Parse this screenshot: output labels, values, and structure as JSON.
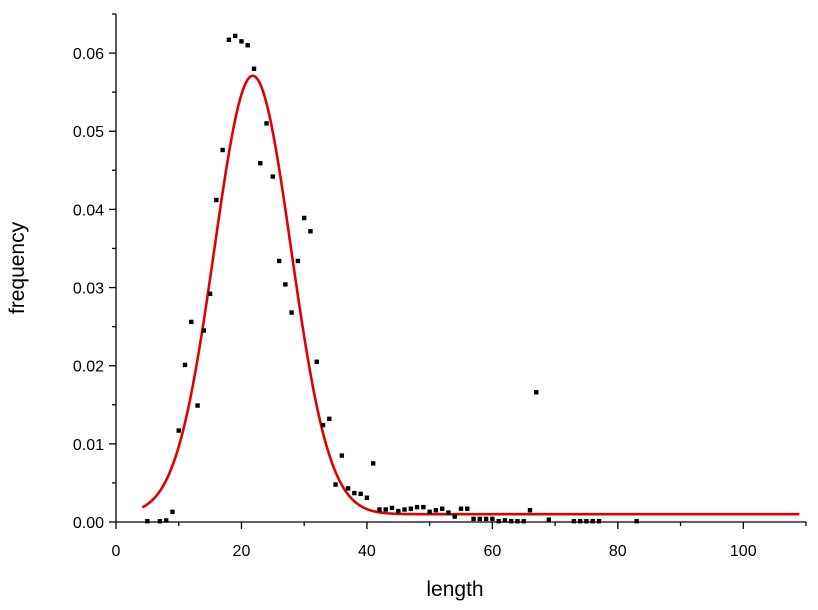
{
  "chart_data": {
    "type": "scatter",
    "title": "",
    "xlabel": "length",
    "ylabel": "frequency",
    "xlim": [
      0,
      110
    ],
    "ylim": [
      0,
      0.065
    ],
    "x_ticks": [
      0,
      20,
      40,
      60,
      80,
      100
    ],
    "x_tick_labels": [
      "0",
      "20",
      "40",
      "60",
      "80",
      "100"
    ],
    "y_ticks": [
      0,
      0.01,
      0.02,
      0.03,
      0.04,
      0.05,
      0.06
    ],
    "y_tick_labels": [
      "0.00",
      "0.01",
      "0.02",
      "0.03",
      "0.04",
      "0.05",
      "0.06"
    ],
    "grid": false,
    "legend": "none",
    "colors": {
      "points": "#000000",
      "fit": "#e00000"
    },
    "points": [
      [
        5,
        0.0001
      ],
      [
        7,
        0.0001
      ],
      [
        8,
        0.0002
      ],
      [
        9,
        0.0013
      ],
      [
        10,
        0.0117
      ],
      [
        11,
        0.0201
      ],
      [
        12,
        0.0256
      ],
      [
        13,
        0.0149
      ],
      [
        14,
        0.0245
      ],
      [
        15,
        0.0292
      ],
      [
        16,
        0.0412
      ],
      [
        17,
        0.0476
      ],
      [
        18,
        0.0617
      ],
      [
        19,
        0.0622
      ],
      [
        20,
        0.0615
      ],
      [
        21,
        0.061
      ],
      [
        22,
        0.058
      ],
      [
        23,
        0.0459
      ],
      [
        24,
        0.051
      ],
      [
        25,
        0.0442
      ],
      [
        26,
        0.0334
      ],
      [
        27,
        0.0304
      ],
      [
        28,
        0.0268
      ],
      [
        29,
        0.0334
      ],
      [
        30,
        0.0389
      ],
      [
        31,
        0.0372
      ],
      [
        32,
        0.0205
      ],
      [
        33,
        0.0124
      ],
      [
        34,
        0.0132
      ],
      [
        35,
        0.0048
      ],
      [
        36,
        0.0085
      ],
      [
        37,
        0.0043
      ],
      [
        38,
        0.0037
      ],
      [
        39,
        0.0036
      ],
      [
        40,
        0.0031
      ],
      [
        41,
        0.0075
      ],
      [
        42,
        0.0016
      ],
      [
        43,
        0.0016
      ],
      [
        44,
        0.0018
      ],
      [
        45,
        0.0014
      ],
      [
        46,
        0.0016
      ],
      [
        47,
        0.0017
      ],
      [
        48,
        0.0019
      ],
      [
        49,
        0.0019
      ],
      [
        50,
        0.0013
      ],
      [
        51,
        0.0015
      ],
      [
        52,
        0.0017
      ],
      [
        53,
        0.0012
      ],
      [
        54,
        0.0007
      ],
      [
        55,
        0.0017
      ],
      [
        56,
        0.0017
      ],
      [
        57,
        0.0004
      ],
      [
        58,
        0.0004
      ],
      [
        59,
        0.0004
      ],
      [
        60,
        0.0004
      ],
      [
        61,
        0.0001
      ],
      [
        62,
        0.0002
      ],
      [
        63,
        0.0001
      ],
      [
        64,
        0.0001
      ],
      [
        65,
        0.0001
      ],
      [
        66,
        0.0015
      ],
      [
        67,
        0.0166
      ],
      [
        69,
        0.0003
      ],
      [
        73,
        0.0001
      ],
      [
        74,
        0.0001
      ],
      [
        75,
        0.0001
      ],
      [
        76,
        0.0001
      ],
      [
        77,
        0.0001
      ],
      [
        83,
        0.0001
      ]
    ],
    "fit": {
      "type": "gaussian",
      "y0": 0.001,
      "amplitude": 0.0561,
      "center": 21.8,
      "sigma": 6.1,
      "x_range": [
        4.2,
        109
      ]
    }
  }
}
